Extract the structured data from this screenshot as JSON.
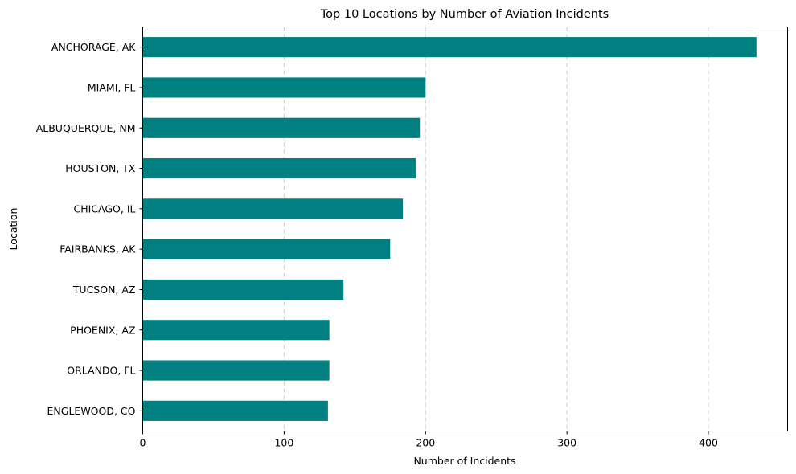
{
  "chart_data": {
    "type": "bar",
    "orientation": "horizontal",
    "title": "Top 10 Locations by Number of Aviation Incidents",
    "xlabel": "Number of Incidents",
    "ylabel": "Location",
    "categories": [
      "ANCHORAGE, AK",
      "MIAMI, FL",
      "ALBUQUERQUE, NM",
      "HOUSTON, TX",
      "CHICAGO, IL",
      "FAIRBANKS, AK",
      "TUCSON, AZ",
      "PHOENIX, AZ",
      "ORLANDO, FL",
      "ENGLEWOOD, CO"
    ],
    "values": [
      434,
      200,
      196,
      193,
      184,
      175,
      142,
      132,
      132,
      131
    ],
    "xlim": [
      0,
      456
    ],
    "xticks": [
      0,
      100,
      200,
      300,
      400
    ],
    "grid": "x-dashed",
    "bar_color": "#008080"
  }
}
